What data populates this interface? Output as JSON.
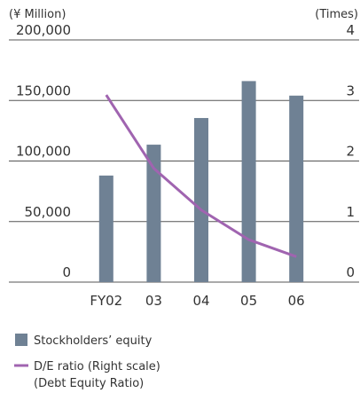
{
  "chart_data": {
    "type": "bar_line",
    "y_axis_label": "(¥ Million)",
    "y2_axis_label": "(Times)",
    "categories": [
      "FY02",
      "03",
      "04",
      "05",
      "06"
    ],
    "series": [
      {
        "name": "Stockholders’ equity",
        "color": "#6f8194",
        "type": "bar",
        "values": [
          88000,
          113500,
          135500,
          166000,
          154000
        ]
      },
      {
        "name": "D/E ratio (Right scale)",
        "color": "#a064b0",
        "type": "line",
        "axis": "y2",
        "values": [
          3.09,
          1.88,
          1.19,
          0.7,
          0.42
        ]
      }
    ],
    "legend_note": "(Debt Equity Ratio)",
    "ylim": [
      0,
      200000
    ],
    "yticks": [
      0,
      {
        "value": 50000,
        "label": "50,000"
      },
      {
        "value": 100000,
        "label": "100,000"
      },
      {
        "value": 150000,
        "label": "150,000"
      },
      {
        "value": 200000,
        "label": "200,000"
      }
    ],
    "y2lim": [
      0,
      4
    ],
    "y2ticks": [
      0,
      1,
      2,
      3,
      4
    ],
    "grid": true
  }
}
